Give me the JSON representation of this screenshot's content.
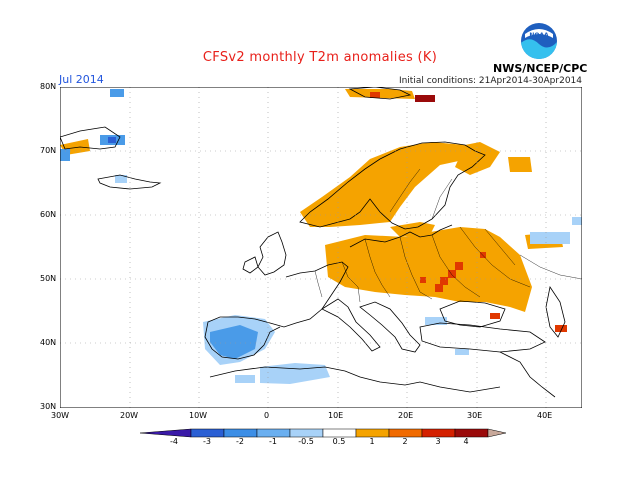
{
  "header": {
    "title": "CFSv2 monthly T2m anomalies (K)",
    "period": "Jul 2014",
    "initial_conditions": "Initial conditions: 21Apr2014-30Apr2014",
    "agency": "NWS/NCEP/CPC",
    "logo_text": "NOAA"
  },
  "map": {
    "region": "Europe",
    "lat_labels": [
      "80N",
      "70N",
      "60N",
      "50N",
      "40N",
      "30N"
    ],
    "lon_labels": [
      "30W",
      "20W",
      "10W",
      "0",
      "10E",
      "20E",
      "30E",
      "40E"
    ],
    "features": {
      "warm_anomaly_regions": [
        "Scandinavia",
        "Eastern Europe",
        "Western Russia",
        "Svalbard"
      ],
      "cool_anomaly_regions": [
        "Iberia",
        "North Africa",
        "Iceland",
        "Greenland tip"
      ]
    }
  },
  "colorbar": {
    "labels": [
      "-4",
      "-3",
      "-2",
      "-1",
      "-0.5",
      "0.5",
      "1",
      "2",
      "3",
      "4"
    ],
    "colors": [
      "#3a1aa8",
      "#2a5fd4",
      "#3c8ee6",
      "#6aaff0",
      "#a8d2f8",
      "#ffffff",
      "#f5a300",
      "#f06a00",
      "#d42000",
      "#9a0a0a",
      "#c8a89a"
    ]
  },
  "colors": {
    "title": "#e8201a",
    "period": "#2255dd",
    "warm_mid": "#f5a300",
    "warm_high": "#e03800",
    "cool_light": "#a8d2f8",
    "cool_mid": "#4a9be8"
  }
}
